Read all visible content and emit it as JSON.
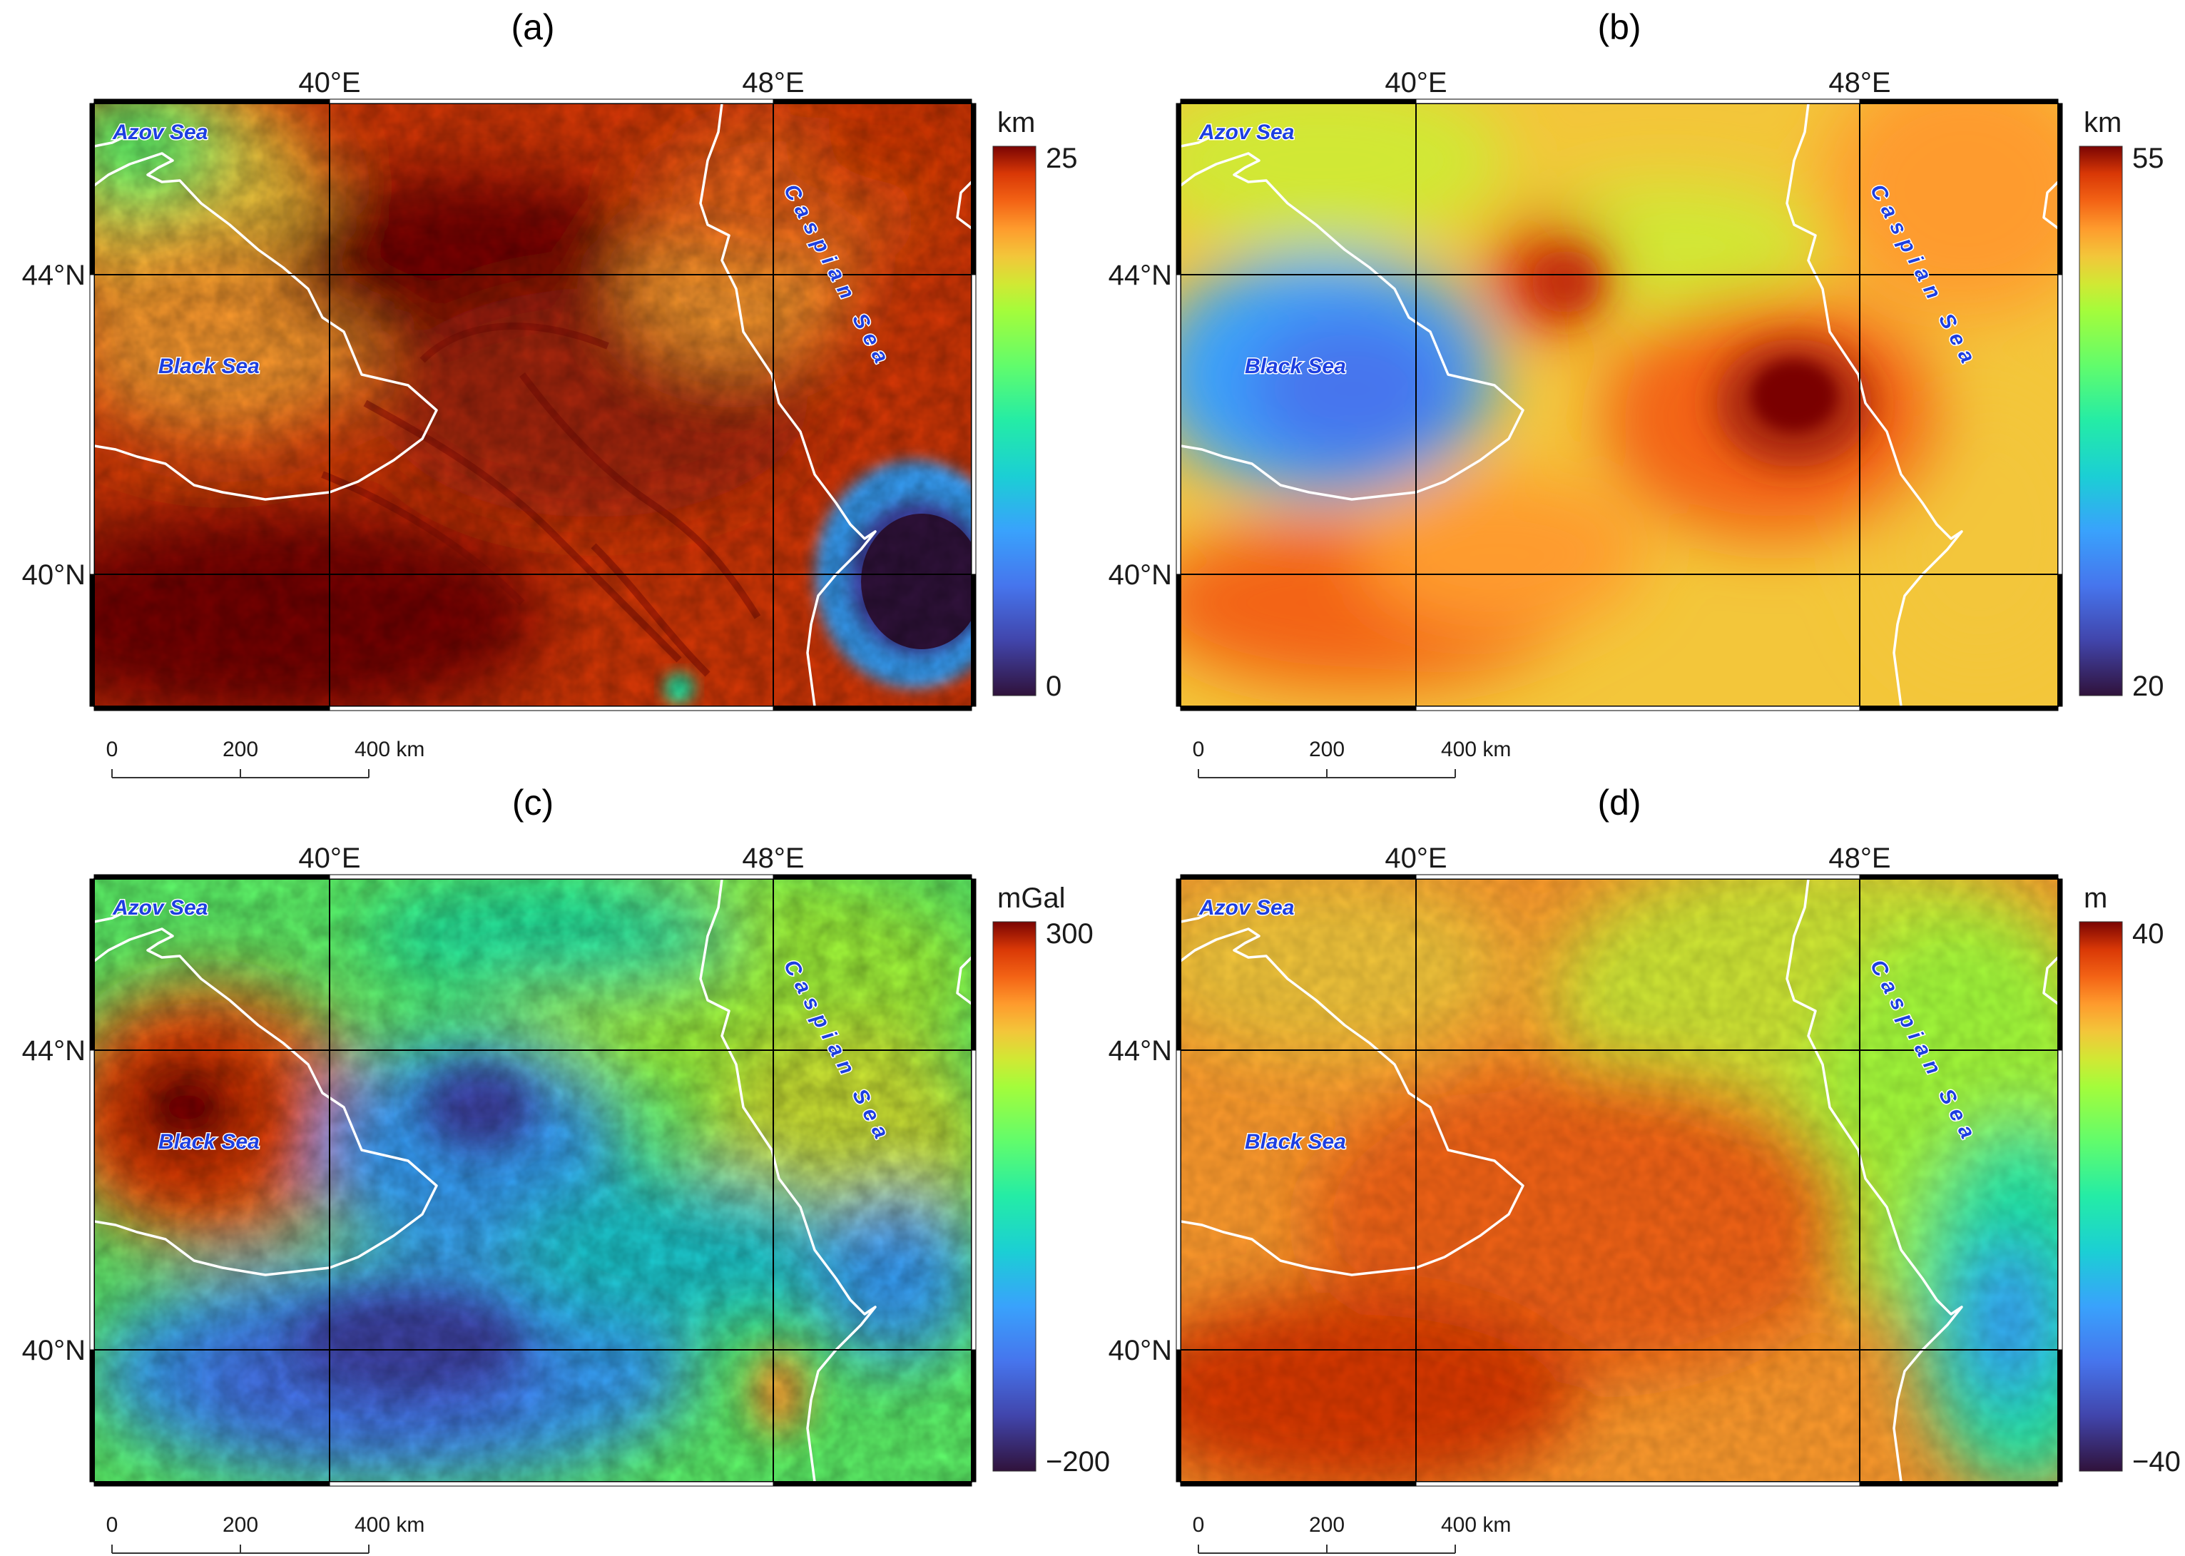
{
  "panels": [
    {
      "id": "a",
      "letter": "(a)",
      "unit": "km",
      "colorbar": {
        "max_label": "25",
        "min_label": "0",
        "max": 25,
        "min": 0
      },
      "field": "a"
    },
    {
      "id": "b",
      "letter": "(b)",
      "unit": "km",
      "colorbar": {
        "max_label": "55",
        "min_label": "20",
        "max": 55,
        "min": 20
      },
      "field": "b"
    },
    {
      "id": "c",
      "letter": "(c)",
      "unit": "mGal",
      "colorbar": {
        "max_label": "300",
        "min_label": "−200",
        "max": 300,
        "min": -200
      },
      "field": "c"
    },
    {
      "id": "d",
      "letter": "(d)",
      "unit": "m",
      "colorbar": {
        "max_label": "40",
        "min_label": "−40",
        "max": 40,
        "min": -40
      }
    }
  ],
  "axes": {
    "lon_labels": [
      "40°E",
      "48°E"
    ],
    "lat_labels": [
      "44°N",
      "40°N"
    ]
  },
  "map_labels": {
    "azov": "Azov Sea",
    "black": "Black Sea",
    "caspian": "Caspian Sea"
  },
  "scale_bar": {
    "labels": [
      "0",
      "200",
      "400 km"
    ]
  },
  "colormap": "turbo",
  "colors": {
    "coastline": "#ffffff",
    "sea_label": "#1d3fe0",
    "grid": "#000000"
  }
}
